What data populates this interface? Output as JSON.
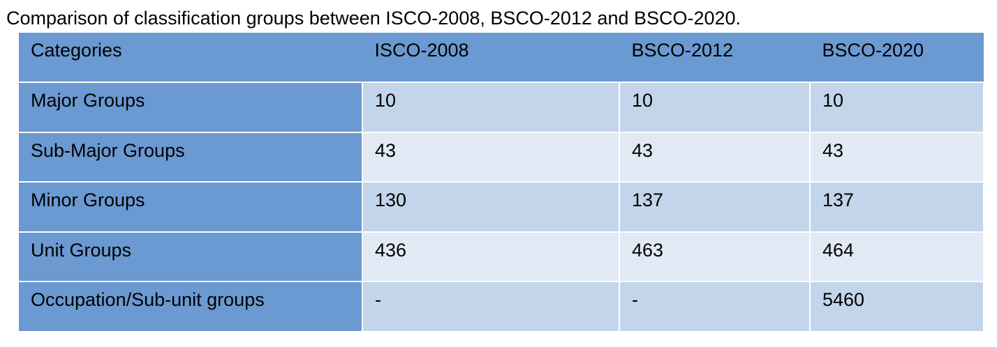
{
  "caption": "Comparison of classification groups between ISCO-2008, BSCO-2012 and BSCO-2020.",
  "table": {
    "headers": [
      "Categories",
      "ISCO-2008",
      "BSCO-2012",
      "BSCO-2020"
    ],
    "rows": [
      {
        "category": "Major Groups",
        "isco_2008": "10",
        "bsco_2012": "10",
        "bsco_2020": "10"
      },
      {
        "category": "Sub-Major Groups",
        "isco_2008": "43",
        "bsco_2012": "43",
        "bsco_2020": "43"
      },
      {
        "category": "Minor Groups",
        "isco_2008": "130",
        "bsco_2012": "137",
        "bsco_2020": "137"
      },
      {
        "category": "Unit Groups",
        "isco_2008": "436",
        "bsco_2012": "463",
        "bsco_2020": "464"
      },
      {
        "category": "Occupation/Sub-unit groups",
        "isco_2008": "-",
        "bsco_2012": "-",
        "bsco_2020": "5460"
      }
    ]
  }
}
